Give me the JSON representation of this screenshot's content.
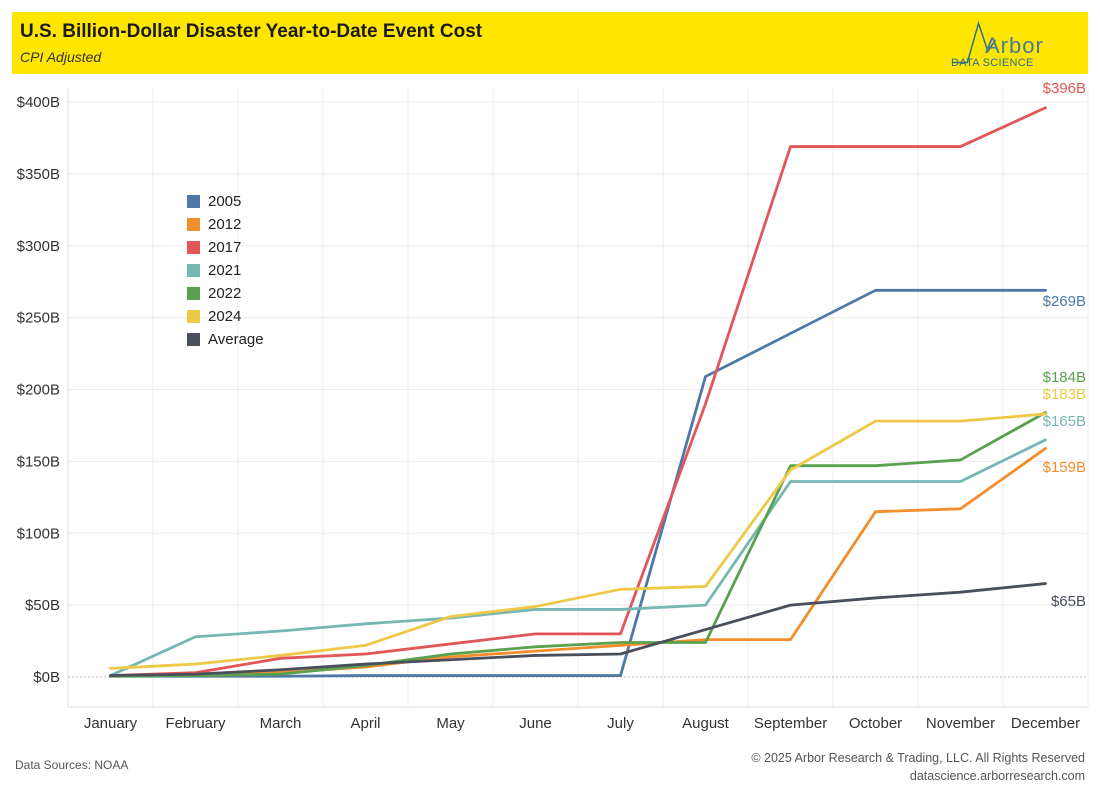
{
  "header": {
    "title": "U.S. Billion-Dollar Disaster Year-to-Date Event Cost",
    "subtitle": "CPI Adjusted"
  },
  "logo": {
    "name": "Arbor",
    "tagline": "DATA SCIENCE",
    "color": "#2e6e90",
    "icon": "arbor-logo-icon"
  },
  "footer": {
    "source": "Data Sources: NOAA",
    "copyright": "© 2025 Arbor Research & Trading, LLC. All Rights Reserved",
    "url": "datascience.arborresearch.com"
  },
  "chart_data": {
    "type": "line",
    "categories": [
      "January",
      "February",
      "March",
      "April",
      "May",
      "June",
      "July",
      "August",
      "September",
      "October",
      "November",
      "December"
    ],
    "ylim": [
      -20,
      410
    ],
    "yticks": [
      0,
      50,
      100,
      150,
      200,
      250,
      300,
      350,
      400
    ],
    "ytick_labels": [
      "$0B",
      "$50B",
      "$100B",
      "$150B",
      "$200B",
      "$250B",
      "$300B",
      "$350B",
      "$400B"
    ],
    "grid": "horizontal",
    "legend_position": "upper-left",
    "series": [
      {
        "name": "2005",
        "color": "#4e79a7",
        "end_label": "$269B",
        "values": [
          0.5,
          0.5,
          0.5,
          1,
          1,
          1,
          1,
          209,
          239,
          269,
          269,
          269
        ]
      },
      {
        "name": "2012",
        "color": "#f28e2b",
        "end_label": "$159B",
        "values": [
          0.5,
          1.5,
          3,
          7,
          14,
          18,
          22,
          26,
          26,
          115,
          117,
          159
        ]
      },
      {
        "name": "2017",
        "color": "#e15759",
        "end_label": "$396B",
        "values": [
          1,
          3,
          13,
          16,
          23,
          30,
          30,
          190,
          369,
          369,
          369,
          396
        ]
      },
      {
        "name": "2021",
        "color": "#76b7b2",
        "end_label": "$165B",
        "values": [
          1,
          28,
          32,
          37,
          41,
          47,
          47,
          50,
          136,
          136,
          136,
          165
        ]
      },
      {
        "name": "2022",
        "color": "#59a14f",
        "end_label": "$184B",
        "values": [
          0.5,
          1,
          2,
          8,
          16,
          21,
          24,
          24,
          147,
          147,
          151,
          184
        ]
      },
      {
        "name": "2024",
        "color": "#edc948",
        "end_label": "$183B",
        "values": [
          6,
          9,
          15,
          22,
          42,
          49,
          61,
          63,
          144,
          178,
          178,
          183
        ]
      },
      {
        "name": "Average",
        "color": "#4a4f5c",
        "end_label": "$65B",
        "values": [
          1,
          2,
          5,
          9,
          12,
          15,
          16,
          33,
          50,
          55,
          59,
          65
        ]
      }
    ]
  }
}
